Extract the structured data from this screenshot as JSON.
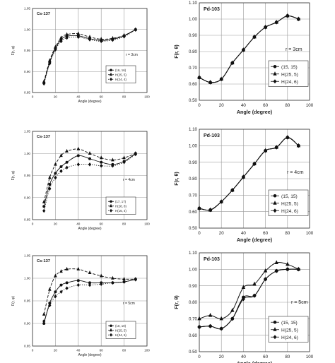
{
  "chart_data": [
    {
      "type": "scatter",
      "title": "Cs-137",
      "xlabel": "Angle (degree)",
      "ylabel": "F(r, φ)",
      "xlim": [
        0,
        100
      ],
      "ylim": [
        0.85,
        1.05
      ],
      "x_ticks": [
        "0",
        "20",
        "40",
        "60",
        "80",
        "100"
      ],
      "y_ticks": [
        "0.85",
        "0.90",
        "0.95",
        "1.00",
        "1.05"
      ],
      "annotation": "r = 3cm",
      "grid": "major",
      "legend_position": "bottom-right",
      "series": [
        {
          "name": "(16, 16)",
          "marker": "circle",
          "line": "solid",
          "x": [
            10,
            15,
            20,
            25,
            30,
            40,
            50,
            60,
            70,
            80,
            90
          ],
          "y": [
            0.873,
            0.922,
            0.955,
            0.976,
            0.984,
            0.985,
            0.978,
            0.974,
            0.977,
            0.985,
            1.0
          ]
        },
        {
          "name": "H(25, 5)",
          "marker": "triangle",
          "line": "dash",
          "x": [
            10,
            15,
            20,
            25,
            30,
            40,
            50,
            60,
            70,
            80,
            90
          ],
          "y": [
            0.876,
            0.926,
            0.958,
            0.98,
            0.988,
            0.99,
            0.982,
            0.977,
            0.979,
            0.986,
            1.0
          ]
        },
        {
          "name": "H(24, 4)",
          "marker": "diamond",
          "line": "dot",
          "x": [
            10,
            15,
            20,
            25,
            30,
            40,
            50,
            60,
            70,
            80,
            90
          ],
          "y": [
            0.871,
            0.919,
            0.952,
            0.972,
            0.98,
            0.982,
            0.976,
            0.972,
            0.975,
            0.983,
            0.999
          ]
        }
      ]
    },
    {
      "type": "line",
      "title": "Pd-103",
      "xlabel": "Angle (degree)",
      "ylabel": "F(r, θ)",
      "xlim": [
        0,
        100
      ],
      "ylim": [
        0.5,
        1.1
      ],
      "x_ticks": [
        "0",
        "20",
        "40",
        "60",
        "80",
        "100"
      ],
      "y_ticks": [
        "0.50",
        "0.60",
        "0.70",
        "0.80",
        "0.90",
        "1.00",
        "1.10"
      ],
      "annotation": "r = 3cm",
      "grid": "major",
      "legend_position": "bottom-right",
      "series": [
        {
          "name": "(15, 15)",
          "marker": "circle",
          "line": "solid",
          "x": [
            0,
            10,
            20,
            30,
            40,
            50,
            60,
            70,
            80,
            90
          ],
          "y": [
            0.64,
            0.61,
            0.63,
            0.73,
            0.81,
            0.89,
            0.95,
            0.98,
            1.02,
            1.0
          ]
        },
        {
          "name": "H(25, 5)",
          "marker": "triangle",
          "line": "solid",
          "x": [
            0,
            10,
            20,
            30,
            40,
            50,
            60,
            70,
            80,
            90
          ],
          "y": [
            0.64,
            0.61,
            0.63,
            0.73,
            0.81,
            0.89,
            0.95,
            0.98,
            1.02,
            1.0
          ]
        },
        {
          "name": "H(24, 6)",
          "marker": "diamond",
          "line": "solid",
          "x": [
            0,
            10,
            20,
            30,
            40,
            50,
            60,
            70,
            80,
            90
          ],
          "y": [
            0.64,
            0.61,
            0.63,
            0.73,
            0.81,
            0.89,
            0.95,
            0.98,
            1.02,
            1.0
          ]
        }
      ]
    },
    {
      "type": "scatter",
      "title": "Cs-137",
      "xlabel": "Angle (degree)",
      "ylabel": "F(r, φ)",
      "xlim": [
        0,
        100
      ],
      "ylim": [
        0.85,
        1.05
      ],
      "x_ticks": [
        "0",
        "20",
        "40",
        "60",
        "80",
        "100"
      ],
      "y_ticks": [
        "0.85",
        "0.90",
        "0.95",
        "1.00",
        "1.05"
      ],
      "annotation": "r = 4cm",
      "grid": "major",
      "legend_position": "bottom-right",
      "series": [
        {
          "name": "(17, 17)",
          "marker": "circle",
          "line": "solid",
          "x": [
            10,
            15,
            20,
            25,
            30,
            40,
            50,
            60,
            70,
            80,
            90
          ],
          "y": [
            0.88,
            0.93,
            0.955,
            0.97,
            0.98,
            0.995,
            0.988,
            0.98,
            0.975,
            0.982,
            1.0
          ]
        },
        {
          "name": "H(28, 8)",
          "marker": "triangle",
          "line": "dash",
          "x": [
            10,
            15,
            20,
            25,
            30,
            40,
            50,
            60,
            70,
            80,
            90
          ],
          "y": [
            0.89,
            0.945,
            0.975,
            0.995,
            1.005,
            1.01,
            1.0,
            0.99,
            0.985,
            0.99,
            1.0
          ]
        },
        {
          "name": "H(16, 4)",
          "marker": "diamond",
          "line": "dot",
          "x": [
            10,
            15,
            20,
            25,
            30,
            40,
            50,
            60,
            70,
            80,
            90
          ],
          "y": [
            0.87,
            0.92,
            0.945,
            0.96,
            0.968,
            0.975,
            0.975,
            0.972,
            0.972,
            0.98,
            0.998
          ]
        }
      ]
    },
    {
      "type": "line",
      "title": "Pd-103",
      "xlabel": "Angle (degree)",
      "ylabel": "F(r, θ)",
      "xlim": [
        0,
        100
      ],
      "ylim": [
        0.5,
        1.1
      ],
      "x_ticks": [
        "0",
        "20",
        "40",
        "60",
        "80",
        "100"
      ],
      "y_ticks": [
        "0.50",
        "0.60",
        "0.70",
        "0.80",
        "0.90",
        "1.00",
        "1.10"
      ],
      "annotation": "r = 4cm",
      "grid": "major",
      "legend_position": "bottom-right",
      "series": [
        {
          "name": "(15, 15)",
          "marker": "circle",
          "line": "solid",
          "x": [
            0,
            10,
            20,
            30,
            40,
            50,
            60,
            70,
            80,
            90
          ],
          "y": [
            0.62,
            0.61,
            0.66,
            0.73,
            0.81,
            0.89,
            0.97,
            0.99,
            1.05,
            1.0
          ]
        },
        {
          "name": "H(25, 5)",
          "marker": "triangle",
          "line": "solid",
          "x": [
            0,
            10,
            20,
            30,
            40,
            50,
            60,
            70,
            80,
            90
          ],
          "y": [
            0.62,
            0.61,
            0.66,
            0.73,
            0.81,
            0.89,
            0.97,
            0.99,
            1.05,
            1.0
          ]
        },
        {
          "name": "H(24, 6)",
          "marker": "diamond",
          "line": "solid",
          "x": [
            0,
            10,
            20,
            30,
            40,
            50,
            60,
            70,
            80,
            90
          ],
          "y": [
            0.62,
            0.61,
            0.66,
            0.73,
            0.81,
            0.89,
            0.97,
            0.99,
            1.05,
            1.0
          ]
        }
      ]
    },
    {
      "type": "scatter",
      "title": "Cs-137",
      "xlabel": "Angle (degree)",
      "ylabel": "F(r, φ)",
      "xlim": [
        0,
        100
      ],
      "ylim": [
        0.85,
        1.05
      ],
      "x_ticks": [
        "0",
        "20",
        "40",
        "60",
        "80",
        "100"
      ],
      "y_ticks": [
        "0.85",
        "0.90",
        "0.95",
        "1.00",
        "1.05"
      ],
      "annotation": "r = 5cm",
      "grid": "major",
      "legend_position": "bottom-right",
      "series": [
        {
          "name": "(10, 10)",
          "marker": "circle",
          "line": "solid",
          "x": [
            10,
            15,
            20,
            25,
            30,
            40,
            50,
            60,
            70,
            80,
            90
          ],
          "y": [
            0.9,
            0.945,
            0.97,
            0.985,
            0.99,
            0.995,
            0.99,
            0.99,
            0.99,
            0.992,
            0.998
          ]
        },
        {
          "name": "H(25, 5)",
          "marker": "triangle",
          "line": "dash",
          "x": [
            10,
            15,
            20,
            25,
            30,
            40,
            50,
            60,
            70,
            80,
            90
          ],
          "y": [
            0.92,
            0.975,
            1.005,
            1.015,
            1.02,
            1.02,
            1.012,
            1.005,
            1.0,
            0.998,
            0.998
          ]
        },
        {
          "name": "H(34, 6)",
          "marker": "diamond",
          "line": "dot",
          "x": [
            10,
            15,
            20,
            25,
            30,
            40,
            50,
            60,
            70,
            80,
            90
          ],
          "y": [
            0.905,
            0.94,
            0.96,
            0.97,
            0.978,
            0.985,
            0.985,
            0.987,
            0.99,
            0.992,
            0.997
          ]
        }
      ]
    },
    {
      "type": "line",
      "title": "Pd-103",
      "xlabel": "Angle (degree)",
      "ylabel": "F(r, θ)",
      "xlim": [
        0,
        100
      ],
      "ylim": [
        0.5,
        1.1
      ],
      "x_ticks": [
        "0",
        "20",
        "40",
        "60",
        "80",
        "100"
      ],
      "y_ticks": [
        "0.50",
        "0.60",
        "0.70",
        "0.80",
        "0.90",
        "1.00",
        "1.10"
      ],
      "annotation": "r = 5cm",
      "grid": "major",
      "legend_position": "bottom-right",
      "series": [
        {
          "name": "(15, 15)",
          "marker": "circle",
          "line": "solid",
          "x": [
            0,
            10,
            20,
            30,
            40,
            50,
            60,
            70,
            80,
            90
          ],
          "y": [
            0.65,
            0.655,
            0.64,
            0.7,
            0.83,
            0.84,
            0.94,
            0.99,
            1.0,
            1.0
          ]
        },
        {
          "name": "H(25, 5)",
          "marker": "triangle",
          "line": "solid",
          "x": [
            0,
            10,
            20,
            30,
            40,
            50,
            60,
            70,
            80,
            90
          ],
          "y": [
            0.7,
            0.72,
            0.7,
            0.75,
            0.89,
            0.91,
            0.99,
            1.04,
            1.03,
            1.0
          ]
        },
        {
          "name": "H(24, 6)",
          "marker": "diamond",
          "line": "solid",
          "x": [
            0,
            10,
            20,
            30,
            40,
            50,
            60,
            70,
            80,
            90
          ],
          "y": [
            0.65,
            0.655,
            0.64,
            0.7,
            0.82,
            0.84,
            0.94,
            0.99,
            1.0,
            1.0
          ]
        }
      ]
    }
  ]
}
